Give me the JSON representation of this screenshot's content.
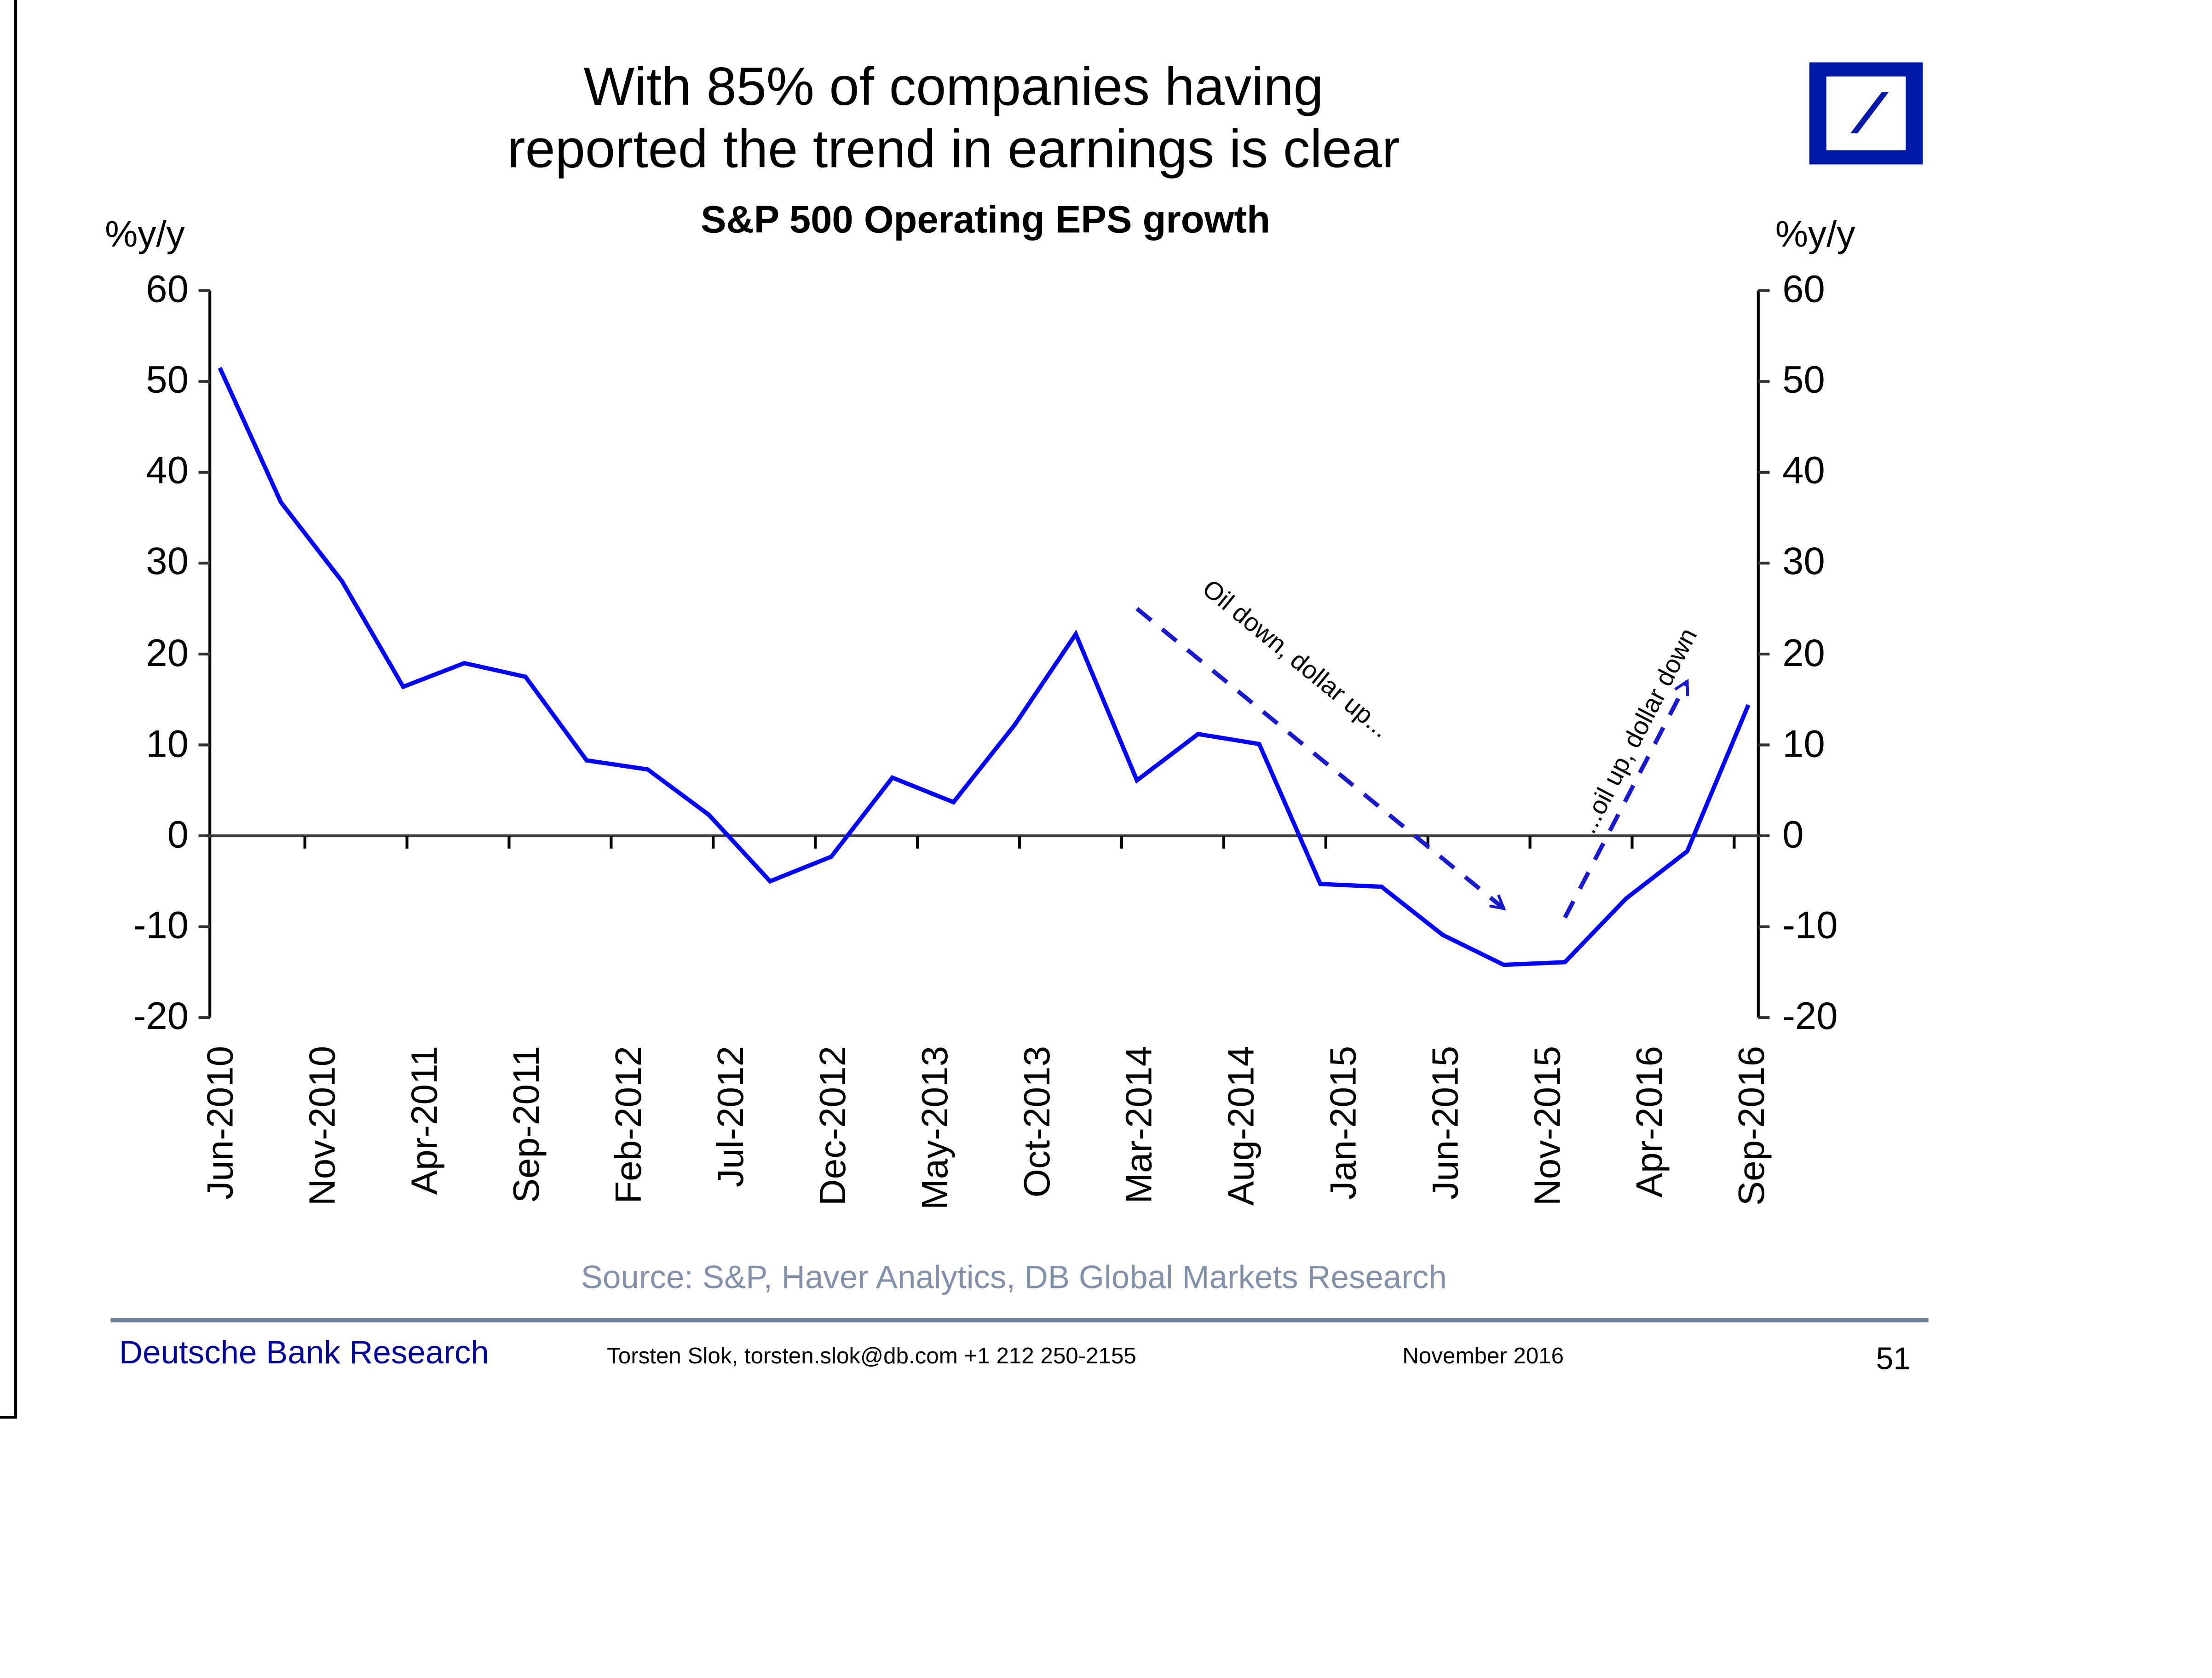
{
  "header": {
    "title_line1": "With 85% of companies having",
    "title_line2": "reported the trend in earnings is clear",
    "logo": "deutsche-bank-logo"
  },
  "chart_data": {
    "type": "line",
    "title": "S&P 500 Operating EPS growth",
    "ylabel_left": "%y/y",
    "ylabel_right": "%y/y",
    "xlabel": "",
    "ylim": [
      -20,
      60
    ],
    "yticks": [
      60,
      50,
      40,
      30,
      20,
      10,
      0,
      -10,
      -20
    ],
    "grid": false,
    "x_tick_labels": [
      "Jun-2010",
      "Nov-2010",
      "Apr-2011",
      "Sep-2011",
      "Feb-2012",
      "Jul-2012",
      "Dec-2012",
      "May-2013",
      "Oct-2013",
      "Mar-2014",
      "Aug-2014",
      "Jan-2015",
      "Jun-2015",
      "Nov-2015",
      "Apr-2016",
      "Sep-2016"
    ],
    "series": [
      {
        "name": "S&P 500 Operating EPS growth (%y/y)",
        "color": "#0000ff",
        "x": [
          "Jun-2010",
          "Sep-2010",
          "Dec-2010",
          "Mar-2011",
          "Jun-2011",
          "Sep-2011",
          "Dec-2011",
          "Mar-2012",
          "Jun-2012",
          "Sep-2012",
          "Dec-2012",
          "Mar-2013",
          "Jun-2013",
          "Sep-2013",
          "Dec-2013",
          "Mar-2014",
          "Jun-2014",
          "Sep-2014",
          "Dec-2014",
          "Mar-2015",
          "Jun-2015",
          "Sep-2015",
          "Dec-2015",
          "Mar-2016",
          "Jun-2016",
          "Sep-2016"
        ],
        "values": [
          51.5,
          36.7,
          28.0,
          16.4,
          19.0,
          17.5,
          8.3,
          7.3,
          2.3,
          -5.0,
          -2.3,
          6.4,
          3.7,
          12.2,
          22.2,
          6.1,
          11.2,
          10.1,
          -5.3,
          -5.6,
          -10.9,
          -14.2,
          -13.9,
          -6.9,
          -1.7,
          14.4
        ]
      }
    ],
    "annotations": [
      {
        "text": "Oil down, dollar up...",
        "style": "dashed-arrow-down",
        "from": {
          "x": "Mar-2014",
          "y": 25
        },
        "to": {
          "x": "Sep-2015",
          "y": -8
        }
      },
      {
        "text": "...oil up, dollar down",
        "style": "dashed-arrow-up",
        "from": {
          "x": "Dec-2015",
          "y": -9
        },
        "to": {
          "x": "Jun-2016",
          "y": 17
        }
      }
    ]
  },
  "source": "Source: S&P, Haver Analytics, DB Global Markets Research",
  "footer": {
    "brand": "Deutsche Bank Research",
    "contact": "Torsten Slok, torsten.slok@db.com  +1 212 250-2155",
    "date": "November 2016",
    "page": "51"
  }
}
